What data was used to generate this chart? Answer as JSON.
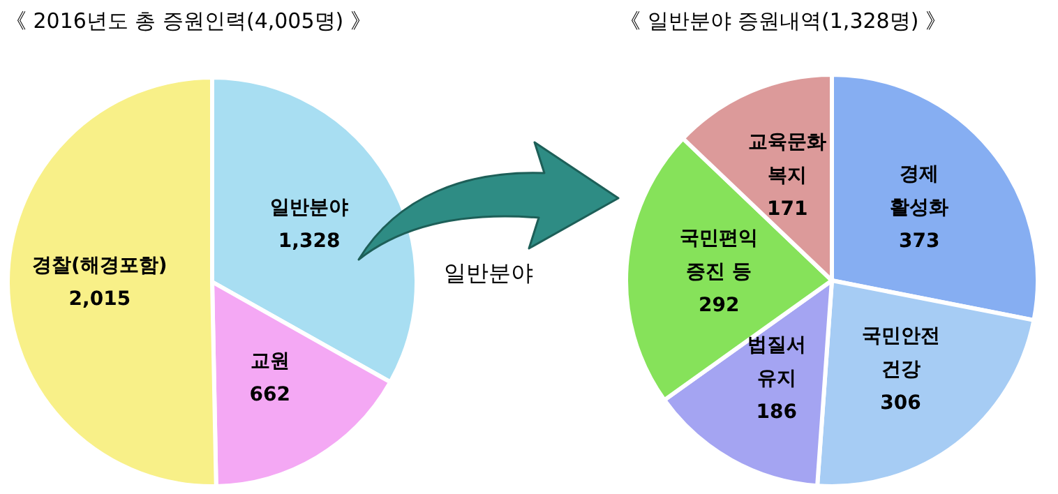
{
  "chart_data": [
    {
      "type": "pie",
      "title": "《 2016년도 총 증원인력(4,005명) 》",
      "categories": [
        "일반분야",
        "교원",
        "경찰(해경포함)"
      ],
      "values": [
        1328,
        662,
        2015
      ],
      "colors": [
        "#a8def2",
        "#f4a8f4",
        "#f8f088"
      ],
      "value_labels": [
        "1,328",
        "662",
        "2,015"
      ],
      "legend": false,
      "annotations": [
        "일반분야"
      ]
    },
    {
      "type": "pie",
      "title": "《 일반분야 증원내역(1,328명) 》",
      "categories": [
        "경제\n활성화",
        "국민안전\n건강",
        "법질서\n유지",
        "국민편익\n증진 등",
        "교육문화\n복지"
      ],
      "values": [
        373,
        306,
        186,
        292,
        171
      ],
      "colors": [
        "#86aef2",
        "#a6ccf4",
        "#a4a4f2",
        "#86e25a",
        "#dc9a9a"
      ],
      "data_labels": true,
      "legend": false
    }
  ]
}
